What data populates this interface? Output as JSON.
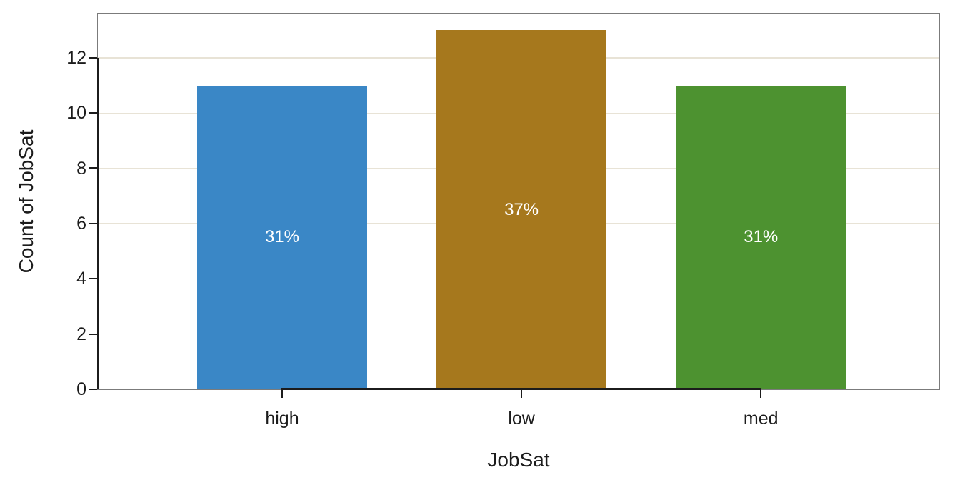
{
  "chart_data": {
    "type": "bar",
    "title": "",
    "categories": [
      "high",
      "low",
      "med"
    ],
    "values": [
      11,
      13,
      11
    ],
    "bar_labels": [
      "31%",
      "37%",
      "31%"
    ],
    "bar_colors": [
      "#3a87c6",
      "#a6781d",
      "#4d9230"
    ],
    "xlabel": "JobSat",
    "ylabel": "Count of JobSat",
    "ylim": [
      0,
      13.6
    ],
    "yticks": [
      0,
      2,
      4,
      6,
      8,
      10,
      12
    ],
    "grid": true,
    "legend": "none",
    "styles": {
      "bar_label_color": "#ffffff",
      "grid_color": "#e8e3d6",
      "panel_border_color": "#7b7b7b",
      "axis_color": "#1c1c1c",
      "text_color": "#1c1c1c",
      "background": "#ffffff"
    }
  }
}
